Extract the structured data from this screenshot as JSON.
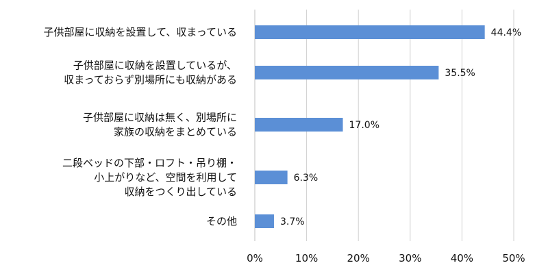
{
  "chart_data": {
    "type": "bar",
    "orientation": "horizontal",
    "categories": [
      [
        "子供部屋に収納を設置して、収まっている"
      ],
      [
        "子供部屋に収納を設置しているが、",
        "収まっておらず別場所にも収納がある"
      ],
      [
        "子供部屋に収納は無く、別場所に",
        "家族の収納をまとめている"
      ],
      [
        "二段ベッドの下部・ロフト・吊り棚・",
        "小上がりなど、空間を利用して",
        "収納をつくり出している"
      ],
      [
        "その他"
      ]
    ],
    "values": [
      44.4,
      35.5,
      17.0,
      6.3,
      3.7
    ],
    "value_labels": [
      "44.4%",
      "35.5%",
      "17.0%",
      "6.3%",
      "3.7%"
    ],
    "xlim": [
      0,
      50
    ],
    "xticks": [
      0,
      10,
      20,
      30,
      40,
      50
    ],
    "xtick_labels": [
      "0%",
      "10%",
      "20%",
      "30%",
      "40%",
      "50%"
    ],
    "grid": true,
    "bar_color": "#5b8fd6"
  }
}
